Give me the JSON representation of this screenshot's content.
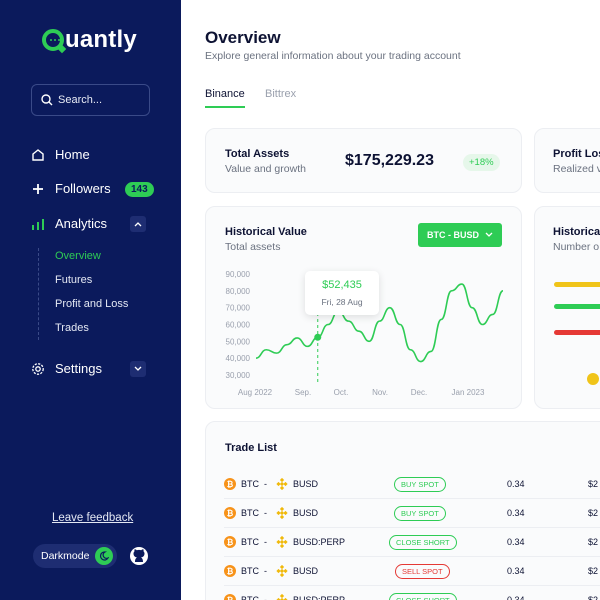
{
  "app": {
    "name": "Quantly",
    "name_rest": "uantly"
  },
  "sidebar": {
    "search_placeholder": "Search...",
    "nav": [
      {
        "label": "Home",
        "icon": "home-icon"
      },
      {
        "label": "Followers",
        "icon": "plus-icon",
        "badge": "143"
      },
      {
        "label": "Analytics",
        "icon": "bar-chart-icon"
      },
      {
        "label": "Settings",
        "icon": "gear-icon"
      }
    ],
    "analytics_sub": [
      "Overview",
      "Futures",
      "Profit and Loss",
      "Trades"
    ],
    "feedback": "Leave feedback",
    "darkmode": "Darkmode"
  },
  "main": {
    "title": "Overview",
    "subtitle": "Explore general information about your trading account",
    "tabs": [
      "Binance",
      "Bittrex"
    ],
    "total_assets": {
      "title": "Total Assets",
      "sub": "Value and growth",
      "value": "$175,229.23",
      "change": "+18%"
    },
    "profit_loss": {
      "title": "Profit Loss",
      "sub": "Realized v"
    },
    "historical_value": {
      "title": "Historical Value",
      "sub": "Total assets",
      "pair": "BTC - BUSD"
    },
    "historical_other": {
      "title": "Historical",
      "sub": "Number o"
    },
    "tooltip": {
      "value": "$52,435",
      "date": "Fri, 28 Aug"
    },
    "trade_list": {
      "title": "Trade List",
      "rows": [
        {
          "coin": "BTC",
          "quote": "BUSD",
          "tag": "BUY SPOT",
          "tag_color": "green",
          "amount": "0.34",
          "price": "$2"
        },
        {
          "coin": "BTC",
          "quote": "BUSD",
          "tag": "BUY SPOT",
          "tag_color": "green",
          "amount": "0.34",
          "price": "$2"
        },
        {
          "coin": "BTC",
          "quote": "BUSD:PERP",
          "tag": "CLOSE SHORT",
          "tag_color": "green",
          "amount": "0.34",
          "price": "$2"
        },
        {
          "coin": "BTC",
          "quote": "BUSD",
          "tag": "SELL SPOT",
          "tag_color": "red",
          "amount": "0.34",
          "price": "$2"
        },
        {
          "coin": "BTC",
          "quote": "BUSD:PERP",
          "tag": "CLOSE SHORT",
          "tag_color": "green",
          "amount": "0.34",
          "price": "$2"
        }
      ]
    }
  },
  "chart_data": {
    "type": "line",
    "title": "Historical Value",
    "subtitle": "Total assets",
    "x_ticks": [
      "Aug 2022",
      "Sep.",
      "Oct.",
      "Nov.",
      "Dec.",
      "Jan 2023"
    ],
    "y_ticks": [
      "90,000",
      "80,000",
      "70,000",
      "60,000",
      "50,000",
      "40,000",
      "30,000"
    ],
    "ylim": [
      30000,
      90000
    ],
    "series": [
      {
        "values": [
          40000,
          45000,
          43000,
          48000,
          52000,
          47000,
          52435,
          60000,
          68000,
          62000,
          56000,
          50000,
          62000,
          70000,
          60000,
          45000,
          38000,
          44000,
          63000,
          80000,
          84000,
          70000,
          60000,
          66000,
          80000
        ]
      }
    ],
    "highlight": {
      "label": "Fri, 28 Aug",
      "value": 52435
    },
    "color": "#2ecc55"
  },
  "colors": {
    "accent": "#2ecc55",
    "sidebar": "#0b1a5c",
    "danger": "#e53935",
    "bar_yellow": "#f0c419",
    "bar_red": "#e53935"
  }
}
